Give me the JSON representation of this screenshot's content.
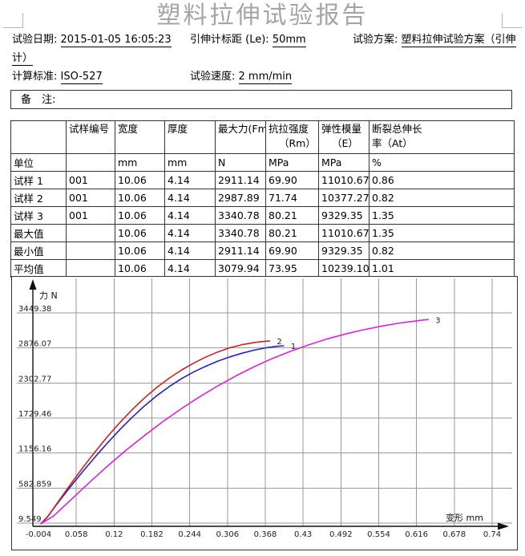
{
  "title": "塑料拉伸试验报告",
  "header": {
    "row1": [
      {
        "label": "试验日期:",
        "value": "2015-01-05 16:05:23"
      },
      {
        "label": "引伸计标距 (Le):",
        "value": "50mm"
      },
      {
        "label": "试验方案:",
        "value": "塑料拉伸试验方案（引伸"
      }
    ],
    "row2_continuation": "计）",
    "row3": [
      {
        "label": "计算标准:",
        "value": "ISO-527"
      },
      {
        "label": "试验速度:",
        "value": "2 mm/min"
      }
    ],
    "remark_label": "备　注:"
  },
  "table": {
    "columns": [
      {
        "line1": ""
      },
      {
        "line1": "试样编号"
      },
      {
        "line1": "宽度"
      },
      {
        "line1": "厚度"
      },
      {
        "line1": "最大力(Fm)"
      },
      {
        "line1": "抗拉强度",
        "line2": "（Rm）"
      },
      {
        "line1": "弹性模量",
        "line2": "（E）"
      },
      {
        "line1": "断裂总伸长",
        "line2": "率（At）"
      }
    ],
    "units_row": [
      "单位",
      "",
      "mm",
      "mm",
      "N",
      "MPa",
      "MPa",
      "%"
    ],
    "rows": [
      [
        "试样 1",
        "001",
        "10.06",
        "4.14",
        "2911.14",
        "69.90",
        "11010.67",
        "0.86"
      ],
      [
        "试样 2",
        "001",
        "10.06",
        "4.14",
        "2987.89",
        "71.74",
        "10377.27",
        "0.82"
      ],
      [
        "试样 3",
        "001",
        "10.06",
        "4.14",
        "3340.78",
        "80.21",
        "9329.35",
        "1.35"
      ],
      [
        "最大值",
        "",
        "10.06",
        "4.14",
        "3340.78",
        "80.21",
        "11010.67",
        "1.35"
      ],
      [
        "最小值",
        "",
        "10.06",
        "4.14",
        "2911.14",
        "69.90",
        "9329.35",
        "0.82"
      ],
      [
        "平均值",
        "",
        "10.06",
        "4.14",
        "3079.94",
        "73.95",
        "10239.10",
        "1.01"
      ]
    ]
  },
  "chart_data": {
    "type": "line",
    "xlabel": "变形  mm",
    "ylabel": "力 N",
    "x_ticks": [
      "-0.004",
      "0.058",
      "0.12",
      "0.182",
      "0.244",
      "0.306",
      "0.368",
      "0.43",
      "0.492",
      "0.554",
      "0.616",
      "0.678",
      "0.74"
    ],
    "y_ticks": [
      "9.549",
      "582.859",
      "1156.16",
      "1729.46",
      "2302.77",
      "2876.07",
      "3449.38"
    ],
    "xlim": [
      -0.004,
      0.74
    ],
    "ylim": [
      9.549,
      3449.38
    ],
    "grid": true,
    "series": [
      {
        "name": "1",
        "color": "#2222cc",
        "points": [
          [
            0,
            0
          ],
          [
            0.01,
            105
          ],
          [
            0.03,
            370
          ],
          [
            0.05,
            625
          ],
          [
            0.07,
            870
          ],
          [
            0.09,
            1105
          ],
          [
            0.11,
            1330
          ],
          [
            0.13,
            1545
          ],
          [
            0.15,
            1745
          ],
          [
            0.17,
            1930
          ],
          [
            0.19,
            2095
          ],
          [
            0.21,
            2240
          ],
          [
            0.23,
            2370
          ],
          [
            0.25,
            2480
          ],
          [
            0.27,
            2575
          ],
          [
            0.29,
            2660
          ],
          [
            0.31,
            2730
          ],
          [
            0.33,
            2790
          ],
          [
            0.35,
            2840
          ],
          [
            0.37,
            2880
          ],
          [
            0.385,
            2900
          ],
          [
            0.398,
            2911
          ]
        ]
      },
      {
        "name": "2",
        "color": "#cc2222",
        "points": [
          [
            0,
            0
          ],
          [
            0.01,
            100
          ],
          [
            0.03,
            385
          ],
          [
            0.05,
            665
          ],
          [
            0.07,
            935
          ],
          [
            0.09,
            1190
          ],
          [
            0.11,
            1435
          ],
          [
            0.13,
            1660
          ],
          [
            0.15,
            1870
          ],
          [
            0.17,
            2060
          ],
          [
            0.19,
            2230
          ],
          [
            0.21,
            2380
          ],
          [
            0.23,
            2510
          ],
          [
            0.25,
            2625
          ],
          [
            0.27,
            2725
          ],
          [
            0.29,
            2810
          ],
          [
            0.31,
            2880
          ],
          [
            0.33,
            2930
          ],
          [
            0.35,
            2965
          ],
          [
            0.365,
            2982
          ],
          [
            0.375,
            2988
          ]
        ]
      },
      {
        "name": "3",
        "color": "#dd22dd",
        "points": [
          [
            0,
            0
          ],
          [
            0.02,
            120
          ],
          [
            0.05,
            400
          ],
          [
            0.08,
            680
          ],
          [
            0.11,
            950
          ],
          [
            0.14,
            1205
          ],
          [
            0.17,
            1445
          ],
          [
            0.2,
            1670
          ],
          [
            0.23,
            1880
          ],
          [
            0.26,
            2075
          ],
          [
            0.29,
            2255
          ],
          [
            0.32,
            2420
          ],
          [
            0.35,
            2570
          ],
          [
            0.38,
            2705
          ],
          [
            0.41,
            2825
          ],
          [
            0.44,
            2930
          ],
          [
            0.47,
            3025
          ],
          [
            0.5,
            3105
          ],
          [
            0.53,
            3175
          ],
          [
            0.56,
            3235
          ],
          [
            0.59,
            3285
          ],
          [
            0.61,
            3310
          ],
          [
            0.625,
            3330
          ],
          [
            0.635,
            3341
          ]
        ]
      }
    ]
  }
}
